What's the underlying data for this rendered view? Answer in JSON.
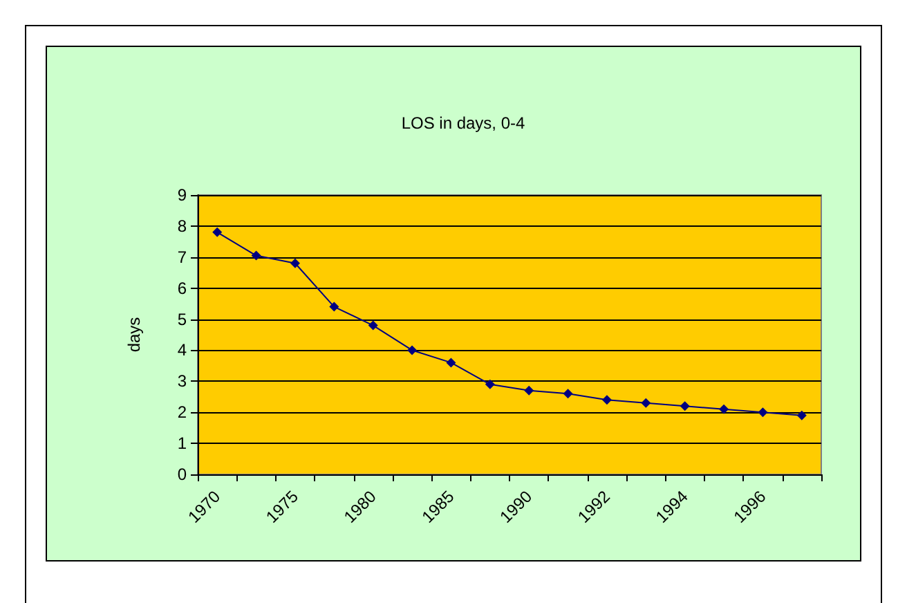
{
  "chart_data": {
    "type": "line",
    "title": "LOS in days, 0-4",
    "ylabel": "days",
    "categories": [
      "1970",
      null,
      "1975",
      null,
      "1980",
      null,
      "1985",
      null,
      "1990",
      null,
      "1992",
      null,
      "1994",
      null,
      "1996",
      null
    ],
    "series": [
      {
        "color": "#000080",
        "values": [
          7.8,
          7.05,
          6.8,
          5.4,
          4.8,
          4.0,
          3.6,
          2.9,
          2.7,
          2.6,
          2.4,
          2.3,
          2.2,
          2.1,
          2.0,
          1.9
        ]
      }
    ],
    "ylim": [
      0,
      9
    ],
    "yticks": [
      0,
      1,
      2,
      3,
      4,
      5,
      6,
      7,
      8,
      9
    ],
    "grid": "y",
    "marker": "diamond"
  }
}
